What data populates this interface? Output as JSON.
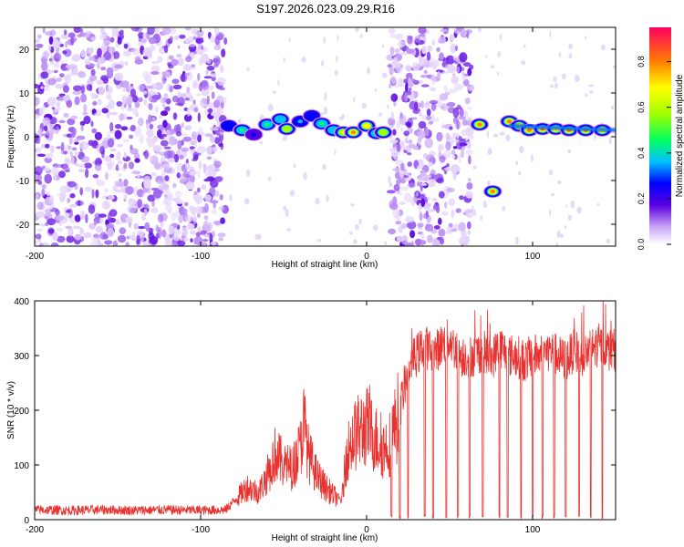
{
  "chart_data": [
    {
      "type": "heatmap",
      "title": "S197.2026.023.09.29.R16",
      "xlabel": "Height of straight line (km)",
      "ylabel": "Frequency (Hz)",
      "xlim": [
        -200,
        150
      ],
      "ylim": [
        -25,
        25
      ],
      "xticks": [
        -200,
        -100,
        0,
        100
      ],
      "xtick_labels": [
        "-200",
        "-100",
        "0",
        "100"
      ],
      "yticks": [
        -20,
        -10,
        0,
        10,
        20
      ],
      "ytick_labels": [
        "-20",
        "-10",
        "0",
        "10",
        "20"
      ],
      "colorbar": {
        "label": "Normalized spectral amplitude",
        "range": [
          0,
          0.95
        ],
        "ticks": [
          0,
          0.2,
          0.4,
          0.6,
          0.8
        ],
        "tick_labels": [
          "0.0",
          "0.2",
          "0.4",
          "0.6",
          "0.8"
        ]
      },
      "noise_regions": [
        {
          "x_start": -200,
          "x_end": -85,
          "density": "high"
        },
        {
          "x_start": 14,
          "x_end": 63,
          "density": "high"
        }
      ],
      "signal_track": [
        {
          "x": -83,
          "freq": 2.5,
          "amp": 0.35
        },
        {
          "x": -75,
          "freq": 1.5,
          "amp": 0.5
        },
        {
          "x": -68,
          "freq": 0.5,
          "amp": 0.3
        },
        {
          "x": -60,
          "freq": 2.8,
          "amp": 0.55
        },
        {
          "x": -52,
          "freq": 4.0,
          "amp": 0.45
        },
        {
          "x": -48,
          "freq": 1.8,
          "amp": 0.6
        },
        {
          "x": -40,
          "freq": 3.5,
          "amp": 0.4
        },
        {
          "x": -33,
          "freq": 4.8,
          "amp": 0.35
        },
        {
          "x": -27,
          "freq": 3.0,
          "amp": 0.55
        },
        {
          "x": -20,
          "freq": 1.5,
          "amp": 0.45
        },
        {
          "x": -14,
          "freq": 1.0,
          "amp": 0.7
        },
        {
          "x": -8,
          "freq": 1.0,
          "amp": 0.9
        },
        {
          "x": 0,
          "freq": 2.5,
          "amp": 0.75
        },
        {
          "x": 6,
          "freq": 0.8,
          "amp": 0.5
        },
        {
          "x": 10,
          "freq": 1.0,
          "amp": 0.65
        },
        {
          "x": 68,
          "freq": 2.8,
          "amp": 0.9
        },
        {
          "x": 76,
          "freq": -12.5,
          "amp": 0.8
        },
        {
          "x": 86,
          "freq": 3.5,
          "amp": 0.9
        },
        {
          "x": 92,
          "freq": 2.5,
          "amp": 0.7
        },
        {
          "x": 98,
          "freq": 1.5,
          "amp": 0.9
        },
        {
          "x": 106,
          "freq": 1.8,
          "amp": 0.85
        },
        {
          "x": 114,
          "freq": 1.8,
          "amp": 0.75
        },
        {
          "x": 122,
          "freq": 1.5,
          "amp": 0.85
        },
        {
          "x": 132,
          "freq": 1.5,
          "amp": 0.8
        },
        {
          "x": 142,
          "freq": 1.5,
          "amp": 0.75
        }
      ]
    },
    {
      "type": "line",
      "title": "",
      "xlabel": "Height of straight line (km)",
      "ylabel": "SNR (10 * v/v)",
      "xlim": [
        -200,
        150
      ],
      "ylim": [
        0,
        400
      ],
      "xticks": [
        -200,
        -100,
        0,
        100
      ],
      "xtick_labels": [
        "-200",
        "-100",
        "0",
        "100"
      ],
      "yticks": [
        0,
        100,
        200,
        300,
        400
      ],
      "ytick_labels": [
        "0",
        "100",
        "200",
        "300",
        "400"
      ],
      "color": "#e8322f",
      "series": [
        {
          "name": "SNR",
          "x": [
            -200,
            -180,
            -160,
            -140,
            -120,
            -100,
            -85,
            -78,
            -72,
            -65,
            -60,
            -55,
            -50,
            -45,
            -40,
            -38,
            -35,
            -30,
            -25,
            -20,
            -15,
            -12,
            -8,
            -5,
            0,
            5,
            10,
            14,
            20,
            25,
            30,
            35,
            40,
            45,
            50,
            55,
            60,
            65,
            70,
            75,
            80,
            85,
            90,
            95,
            100,
            105,
            110,
            115,
            120,
            125,
            130,
            135,
            140,
            145,
            150
          ],
          "values": [
            18,
            17,
            18,
            17,
            18,
            17,
            18,
            40,
            60,
            50,
            80,
            120,
            100,
            95,
            130,
            180,
            120,
            80,
            60,
            45,
            35,
            120,
            150,
            160,
            170,
            150,
            130,
            140,
            200,
            280,
            300,
            320,
            300,
            320,
            330,
            300,
            300,
            300,
            310,
            290,
            320,
            300,
            300,
            290,
            300,
            300,
            310,
            300,
            290,
            310,
            300,
            310,
            320,
            310,
            310
          ]
        }
      ],
      "dropouts": [
        15,
        20,
        25,
        35,
        40,
        48,
        55,
        62,
        70,
        80,
        85,
        93,
        100,
        106,
        113,
        120,
        128,
        135,
        142
      ]
    }
  ]
}
